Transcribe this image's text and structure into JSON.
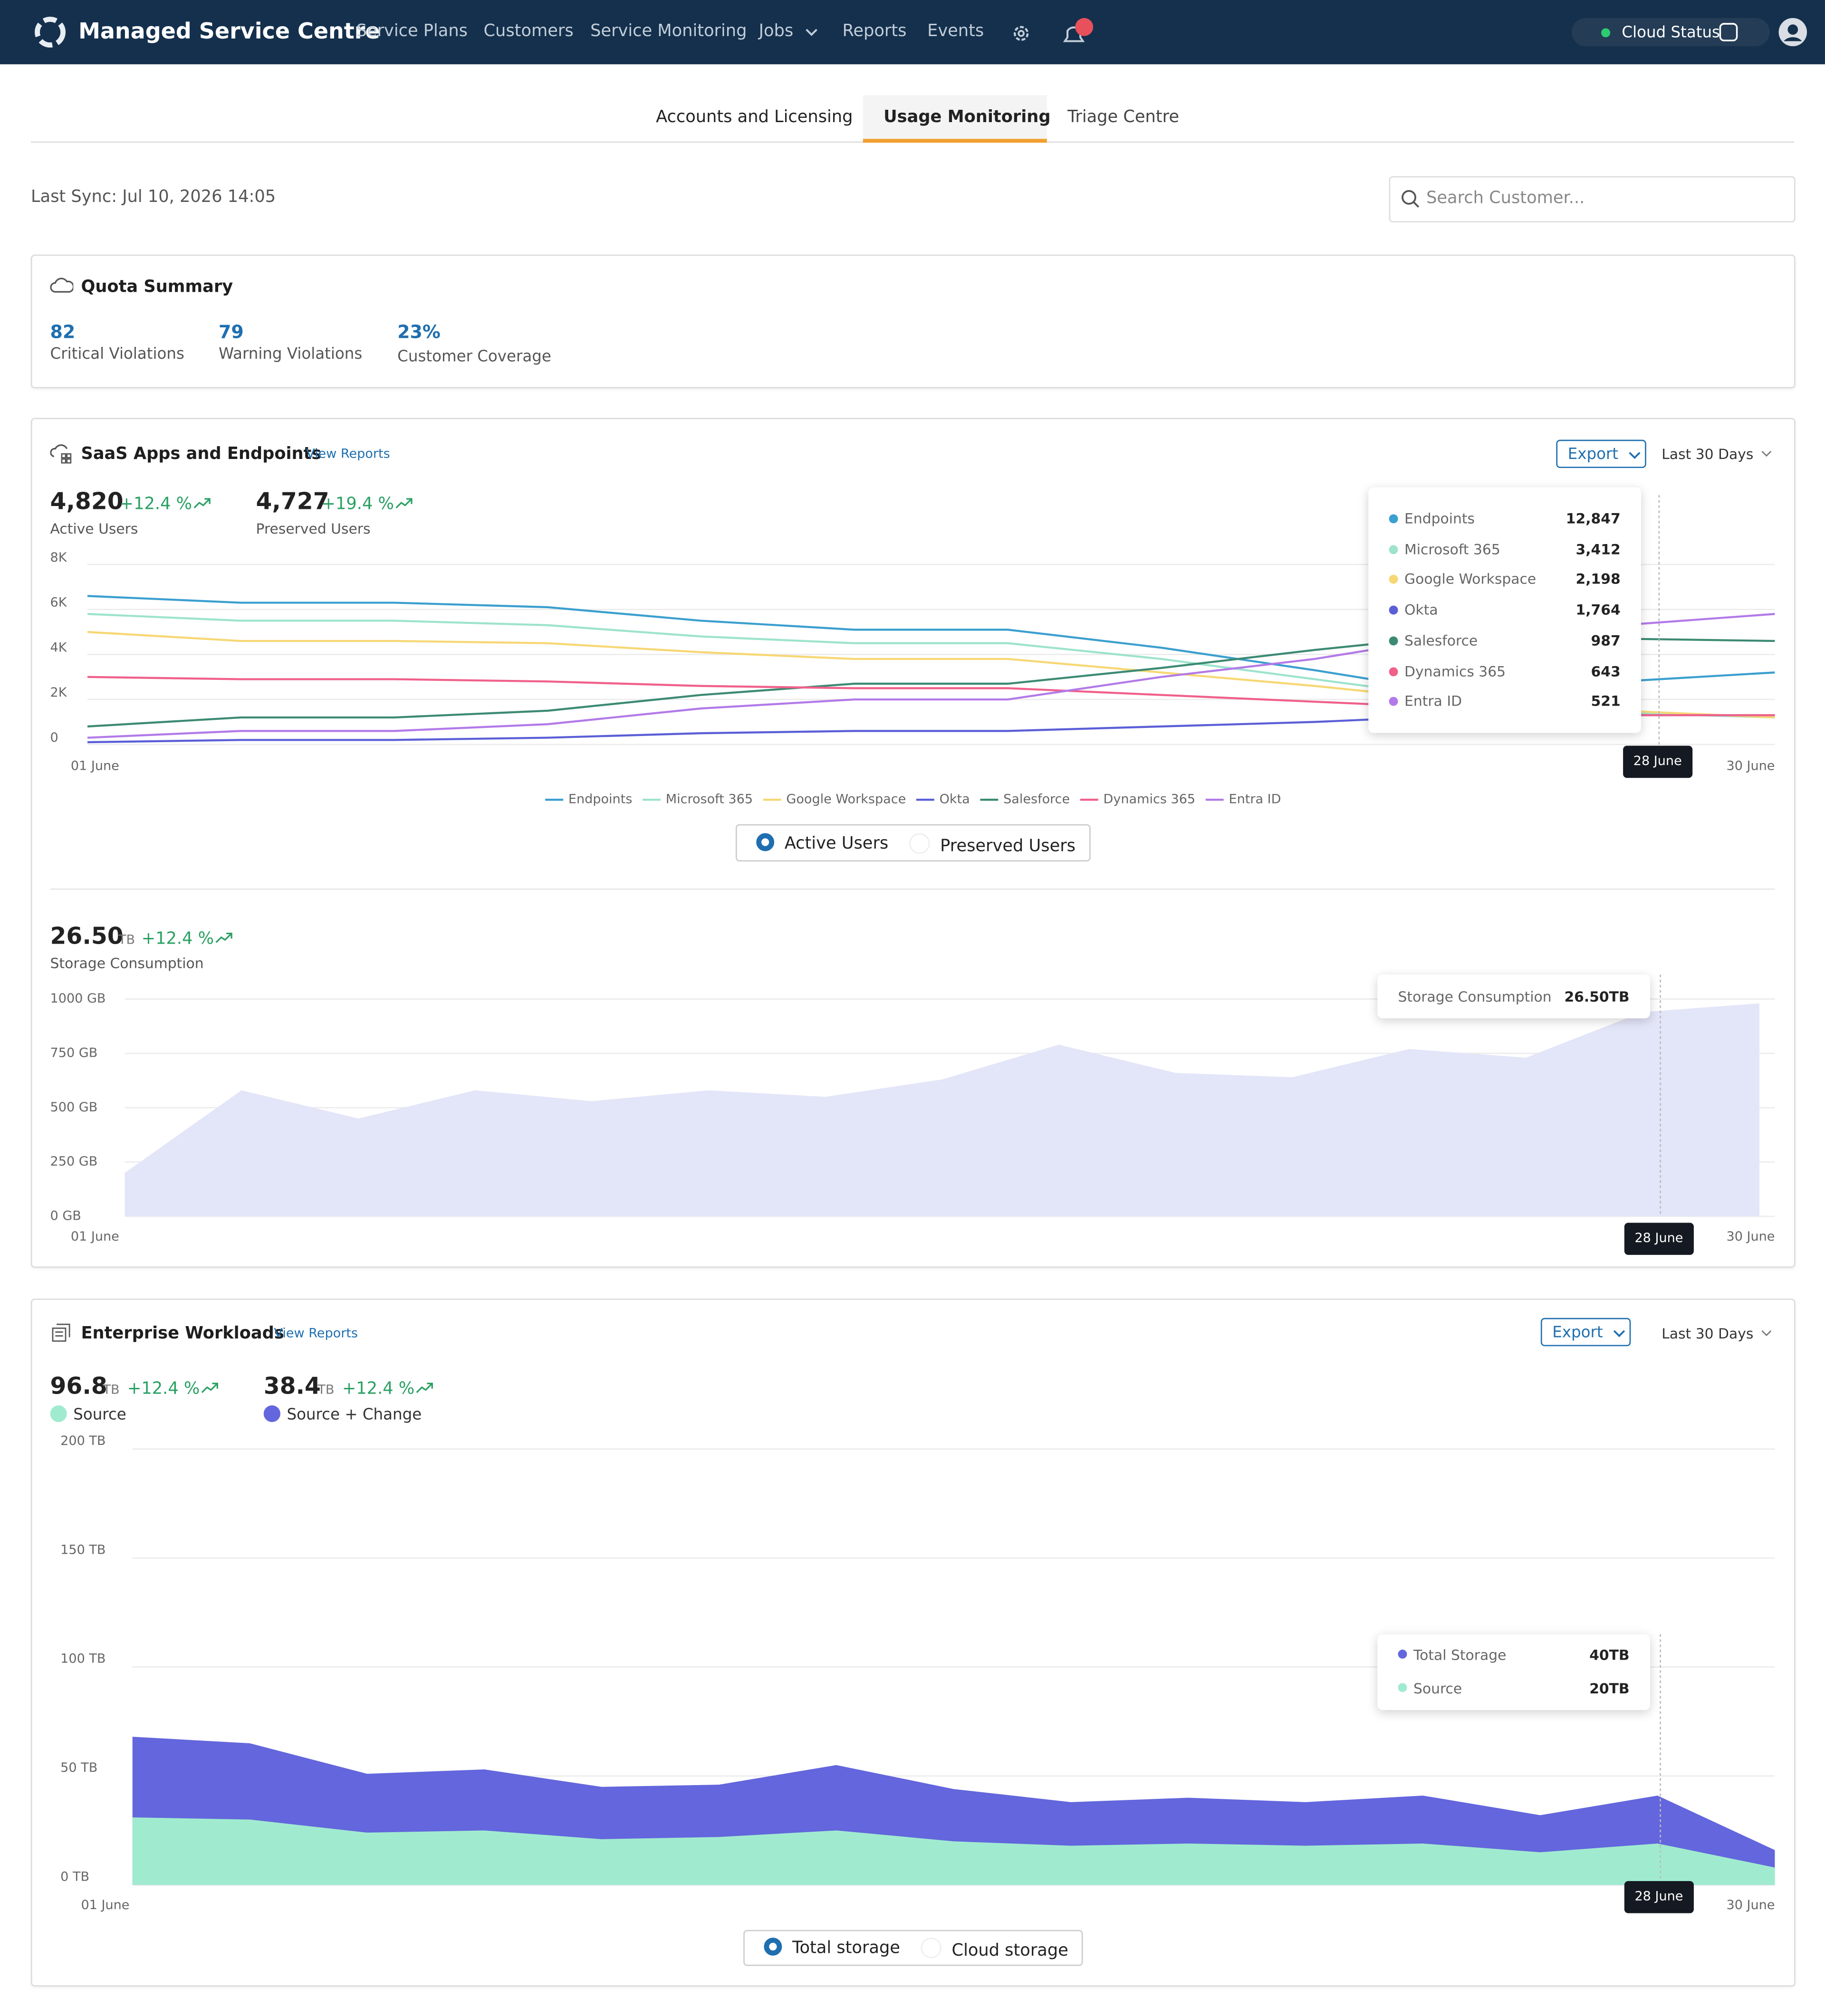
{
  "nav": {
    "brand": "Managed Service Centre",
    "links": [
      "Service Plans",
      "Customers",
      "Service Monitoring",
      "Jobs",
      "Reports",
      "Events"
    ],
    "cloud_status": "Cloud Status"
  },
  "tabs": [
    "Accounts and Licensing",
    "Usage Monitoring",
    "Triage Centre"
  ],
  "last_sync": "Last Sync: Jul 10, 2026 14:05",
  "search_placeholder": "Search Customer...",
  "quota": {
    "title": "Quota Summary",
    "stats": [
      {
        "value": "82",
        "label": "Critical Violations"
      },
      {
        "value": "79",
        "label": "Warning Violations"
      },
      {
        "value": "23%",
        "label": "Customer Coverage"
      }
    ]
  },
  "saas": {
    "title": "SaaS Apps and Endpoints",
    "view_reports": "View Reports",
    "export": "Export",
    "range": "Last 30 Days",
    "stats": [
      {
        "value": "4,820",
        "change": "+12.4 %",
        "label": "Active Users"
      },
      {
        "value": "4,727",
        "change": "+19.4 %",
        "label": "Preserved Users"
      }
    ],
    "tooltip_values": [
      "12,847",
      "3,412",
      "2,198",
      "1,764",
      "987",
      "643",
      "521"
    ],
    "marker": "28 June",
    "toggle": [
      "Active Users",
      "Preserved Users"
    ],
    "storage": {
      "value": "26.50",
      "unit": "TB",
      "change": "+12.4 %",
      "tooltip_value": "26.50TB",
      "marker": "28 June"
    }
  },
  "enterprise": {
    "title": "Enterprise Workloads",
    "view_reports": "View Reports",
    "export": "Export",
    "range": "Last 30 Days",
    "stats": [
      {
        "value": "96.8",
        "unit": "TB",
        "change": "+12.4 %"
      },
      {
        "value": "38.4",
        "unit": "TB",
        "change": "+12.4 %"
      }
    ],
    "tooltip": [
      {
        "label": "Total Storage",
        "value": "40TB"
      },
      {
        "value": "20TB"
      }
    ],
    "marker": "28 June",
    "toggle": [
      "Total storage",
      "Cloud storage"
    ]
  },
  "chart_data": [
    {
      "type": "line",
      "categories": [
        "01 June",
        null,
        null,
        null,
        null,
        null,
        null,
        null,
        null,
        null,
        null,
        "30 June"
      ],
      "series": [
        {
          "name": "Endpoints",
          "color": "#3b9fcf",
          "values": [
            6600,
            6300,
            6300,
            6100,
            5500,
            5100,
            5100,
            4300,
            3300,
            2200,
            2800,
            3200
          ]
        },
        {
          "name": "Microsoft 365",
          "color": "#9de3cd",
          "values": [
            5800,
            5500,
            5500,
            5300,
            4800,
            4500,
            4500,
            3800,
            2900,
            2000,
            1400,
            1200
          ]
        },
        {
          "name": "Google Workspace",
          "color": "#f7d774",
          "values": [
            5000,
            4600,
            4600,
            4500,
            4100,
            3800,
            3800,
            3200,
            2600,
            1900,
            1500,
            1200
          ]
        },
        {
          "name": "Okta",
          "color": "#5a5fd6",
          "values": [
            100,
            200,
            200,
            300,
            500,
            600,
            600,
            800,
            1000,
            1300,
            1300,
            1300
          ]
        },
        {
          "name": "Salesforce",
          "color": "#3c8a73",
          "values": [
            800,
            1200,
            1200,
            1500,
            2200,
            2700,
            2700,
            3400,
            4200,
            4900,
            4700,
            4600
          ]
        },
        {
          "name": "Dynamics 365",
          "color": "#f0608a",
          "values": [
            3000,
            2900,
            2900,
            2800,
            2600,
            2500,
            2500,
            2200,
            1900,
            1600,
            1300,
            1300
          ]
        },
        {
          "name": "Entra ID",
          "color": "#b27ae8",
          "values": [
            300,
            600,
            600,
            900,
            1600,
            2000,
            2000,
            3000,
            3800,
            4900,
            5300,
            5800
          ]
        }
      ],
      "ylim": [
        0,
        8000
      ],
      "yticks": [
        0,
        {
          "value": 2000,
          "label": "2K"
        },
        {
          "value": 4000,
          "label": "4K"
        },
        {
          "value": 6000,
          "label": "6K"
        },
        {
          "value": 8000,
          "label": "8K"
        }
      ],
      "grid": true
    },
    {
      "type": "area",
      "categories": [
        "01 June",
        null,
        null,
        null,
        null,
        null,
        null,
        null,
        null,
        null,
        null,
        null,
        null,
        null,
        "30 June"
      ],
      "series": [
        {
          "name": "Storage Consumption",
          "color": "#e3e5f8",
          "values": [
            200,
            580,
            450,
            580,
            530,
            580,
            550,
            630,
            790,
            660,
            640,
            770,
            730,
            940,
            980
          ]
        }
      ],
      "ylim": [
        0,
        1000
      ],
      "yticks": [
        {
          "value": 0,
          "label": "0 GB"
        },
        {
          "value": 250,
          "label": "250 GB"
        },
        {
          "value": 500,
          "label": "500 GB"
        },
        {
          "value": 750,
          "label": "750 GB"
        },
        {
          "value": 1000,
          "label": "1000 GB"
        }
      ],
      "grid": true
    },
    {
      "type": "area",
      "categories": [
        "01 June",
        null,
        null,
        null,
        null,
        null,
        null,
        null,
        null,
        null,
        null,
        null,
        null,
        null,
        "30 June"
      ],
      "series": [
        {
          "name": "Source + Change",
          "color": "#6366dc",
          "values": [
            68,
            65,
            51,
            53,
            45,
            46,
            55,
            44,
            38,
            40,
            38,
            41,
            32,
            41,
            16
          ]
        },
        {
          "name": "Source",
          "color": "#a0ebd0",
          "values": [
            31,
            30,
            24,
            25,
            21,
            22,
            25,
            20,
            18,
            19,
            18,
            19,
            15,
            19,
            8
          ]
        }
      ],
      "ylim": [
        0,
        200
      ],
      "yticks": [
        {
          "value": 0,
          "label": "0 TB"
        },
        {
          "value": 50,
          "label": "50 TB"
        },
        {
          "value": 100,
          "label": "100 TB"
        },
        {
          "value": 150,
          "label": "150 TB"
        },
        {
          "value": 200,
          "label": "200 TB"
        }
      ],
      "grid": true
    }
  ]
}
